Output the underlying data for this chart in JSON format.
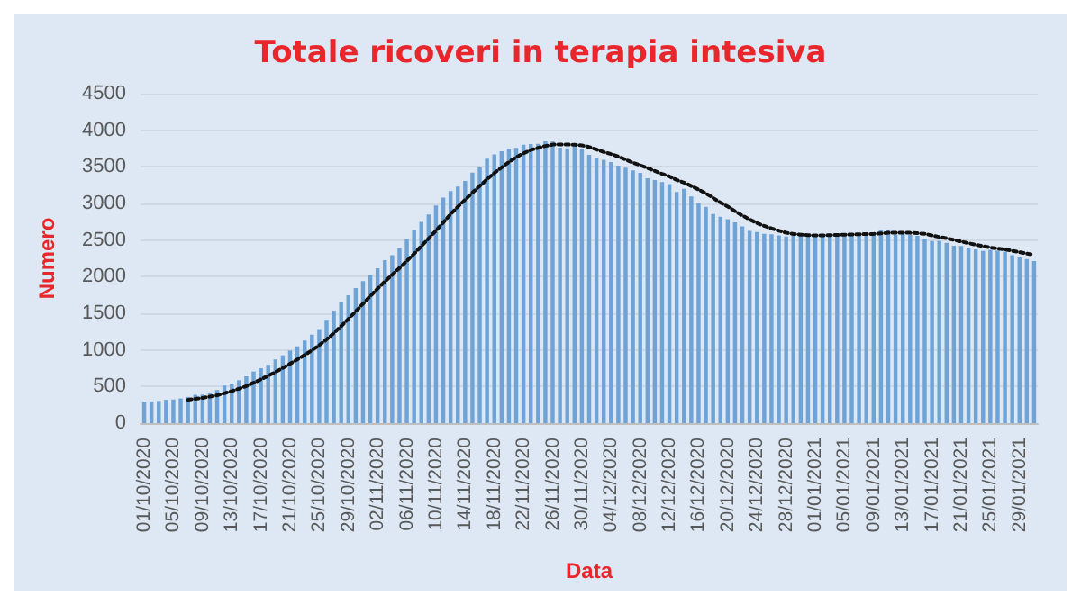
{
  "chart_data": {
    "type": "bar",
    "title": "Totale ricoveri in terapia intesiva",
    "xlabel": "Data",
    "ylabel": "Numero",
    "categories": [
      "01/10/2020",
      null,
      null,
      null,
      "05/10/2020",
      null,
      null,
      null,
      "09/10/2020",
      null,
      null,
      null,
      "13/10/2020",
      null,
      null,
      null,
      "17/10/2020",
      null,
      null,
      null,
      "21/10/2020",
      null,
      null,
      null,
      "25/10/2020",
      null,
      null,
      null,
      "29/10/2020",
      null,
      null,
      null,
      "02/11/2020",
      null,
      null,
      null,
      "06/11/2020",
      null,
      null,
      null,
      "10/11/2020",
      null,
      null,
      null,
      "14/11/2020",
      null,
      null,
      null,
      "18/11/2020",
      null,
      null,
      null,
      "22/11/2020",
      null,
      null,
      null,
      "26/11/2020",
      null,
      null,
      null,
      "30/11/2020",
      null,
      null,
      null,
      "04/12/2020",
      null,
      null,
      null,
      "08/12/2020",
      null,
      null,
      null,
      "12/12/2020",
      null,
      null,
      null,
      "16/12/2020",
      null,
      null,
      null,
      "20/12/2020",
      null,
      null,
      null,
      "24/12/2020",
      null,
      null,
      null,
      "28/12/2020",
      null,
      null,
      null,
      "01/01/2021",
      null,
      null,
      null,
      "05/01/2021",
      null,
      null,
      null,
      "09/01/2021",
      null,
      null,
      null,
      "13/01/2021",
      null,
      null,
      null,
      "17/01/2021",
      null,
      null,
      null,
      "21/01/2021",
      null,
      null,
      null,
      "25/01/2021",
      null,
      null,
      null,
      "29/01/2021",
      null,
      null
    ],
    "series": [
      {
        "color": "#6fa3d6",
        "values": [
          291,
          297,
          303,
          319,
          323,
          337,
          358,
          387,
          390,
          420,
          452,
          514,
          539,
          586,
          638,
          705,
          750,
          797,
          870,
          926,
          992,
          1049,
          1128,
          1208,
          1284,
          1411,
          1536,
          1651,
          1746,
          1843,
          1939,
          2022,
          2115,
          2225,
          2292,
          2391,
          2515,
          2634,
          2749,
          2849,
          2971,
          3081,
          3170,
          3230,
          3306,
          3422,
          3492,
          3612,
          3670,
          3712,
          3748,
          3758,
          3801,
          3810,
          3816,
          3848,
          3846,
          3762,
          3753,
          3782,
          3744,
          3663,
          3616,
          3597,
          3567,
          3517,
          3489,
          3452,
          3418,
          3345,
          3320,
          3291,
          3265,
          3158,
          3199,
          3095,
          3003,
          2953,
          2855,
          2819,
          2784,
          2743,
          2687,
          2624,
          2611,
          2585,
          2579,
          2565,
          2549,
          2570,
          2559,
          2555,
          2569,
          2583,
          2585,
          2579,
          2571,
          2587,
          2579,
          2593,
          2587,
          2636,
          2642,
          2577,
          2587,
          2571,
          2557,
          2522,
          2487,
          2490,
          2461,
          2423,
          2418,
          2395,
          2372,
          2352,
          2367,
          2359,
          2343,
          2293,
          2261,
          2240,
          2214
        ]
      },
      {
        "type": "line",
        "color": "#111111",
        "line_style": "dotted",
        "marker": "none",
        "values": [
          null,
          null,
          null,
          null,
          null,
          null,
          318,
          332,
          345,
          362,
          381,
          408,
          437,
          470,
          506,
          551,
          598,
          647,
          698,
          753,
          811,
          870,
          930,
          996,
          1065,
          1143,
          1230,
          1324,
          1423,
          1526,
          1630,
          1735,
          1836,
          1934,
          2026,
          2118,
          2214,
          2313,
          2417,
          2522,
          2629,
          2741,
          2853,
          2955,
          3051,
          3147,
          3239,
          3330,
          3415,
          3492,
          3566,
          3631,
          3685,
          3730,
          3759,
          3785,
          3804,
          3806,
          3805,
          3802,
          3793,
          3771,
          3738,
          3702,
          3675,
          3641,
          3599,
          3557,
          3522,
          3484,
          3444,
          3405,
          3369,
          3321,
          3285,
          3239,
          3190,
          3138,
          3075,
          3012,
          2958,
          2893,
          2835,
          2781,
          2732,
          2693,
          2659,
          2628,
          2600,
          2583,
          2574,
          2566,
          2564,
          2564,
          2567,
          2571,
          2572,
          2576,
          2579,
          2582,
          2583,
          2590,
          2599,
          2600,
          2600,
          2599,
          2594,
          2585,
          2563,
          2542,
          2525,
          2502,
          2480,
          2457,
          2435,
          2416,
          2398,
          2384,
          2372,
          2354,
          2335,
          2316,
          2297
        ]
      }
    ],
    "ylim": [
      0,
      4500
    ],
    "yticks": [
      0,
      500,
      1000,
      1500,
      2000,
      2500,
      3000,
      3500,
      4000,
      4500
    ],
    "grid": "y"
  }
}
